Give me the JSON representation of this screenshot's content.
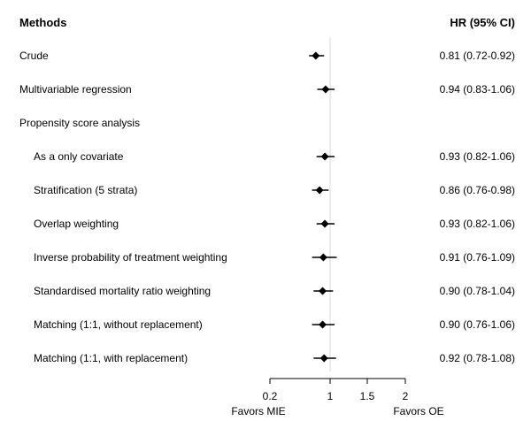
{
  "chart_data": {
    "type": "forest",
    "headers": {
      "left": "Methods",
      "right": "HR (95% CI)"
    },
    "rows": [
      {
        "label": "Crude",
        "indent": false,
        "hr": 0.81,
        "lo": 0.72,
        "hi": 0.92,
        "ci_text": "0.81 (0.72-0.92)"
      },
      {
        "label": "Multivariable regression",
        "indent": false,
        "hr": 0.94,
        "lo": 0.83,
        "hi": 1.06,
        "ci_text": "0.94 (0.83-1.06)"
      },
      {
        "label": "Propensity score analysis",
        "indent": false,
        "hr": null,
        "lo": null,
        "hi": null,
        "ci_text": ""
      },
      {
        "label": "As a only covariate",
        "indent": true,
        "hr": 0.93,
        "lo": 0.82,
        "hi": 1.06,
        "ci_text": "0.93 (0.82-1.06)"
      },
      {
        "label": "Stratification (5 strata)",
        "indent": true,
        "hr": 0.86,
        "lo": 0.76,
        "hi": 0.98,
        "ci_text": "0.86 (0.76-0.98)"
      },
      {
        "label": "Overlap weighting",
        "indent": true,
        "hr": 0.93,
        "lo": 0.82,
        "hi": 1.06,
        "ci_text": "0.93 (0.82-1.06)"
      },
      {
        "label": "Inverse probability of treatment weighting",
        "indent": true,
        "hr": 0.91,
        "lo": 0.76,
        "hi": 1.09,
        "ci_text": "0.91 (0.76-1.09)"
      },
      {
        "label": "Standardised mortality ratio weighting",
        "indent": true,
        "hr": 0.9,
        "lo": 0.78,
        "hi": 1.04,
        "ci_text": "0.90 (0.78-1.04)"
      },
      {
        "label": "Matching (1:1, without replacement)",
        "indent": true,
        "hr": 0.9,
        "lo": 0.76,
        "hi": 1.06,
        "ci_text": "0.90 (0.76-1.06)"
      },
      {
        "label": "Matching (1:1, with replacement)",
        "indent": true,
        "hr": 0.92,
        "lo": 0.78,
        "hi": 1.08,
        "ci_text": "0.92 (0.78-1.08)"
      }
    ],
    "x_ticks": [
      0.2,
      1,
      1.5,
      2
    ],
    "x_tick_labels": [
      "0.2",
      "1",
      "1.5",
      "2"
    ],
    "reference_line": 1,
    "xlim": [
      0.2,
      2
    ],
    "favors_left": "Favors MIE",
    "favors_right": "Favors OE",
    "colors": {
      "marker": "#000000",
      "reference": "#d9d9d9"
    }
  }
}
